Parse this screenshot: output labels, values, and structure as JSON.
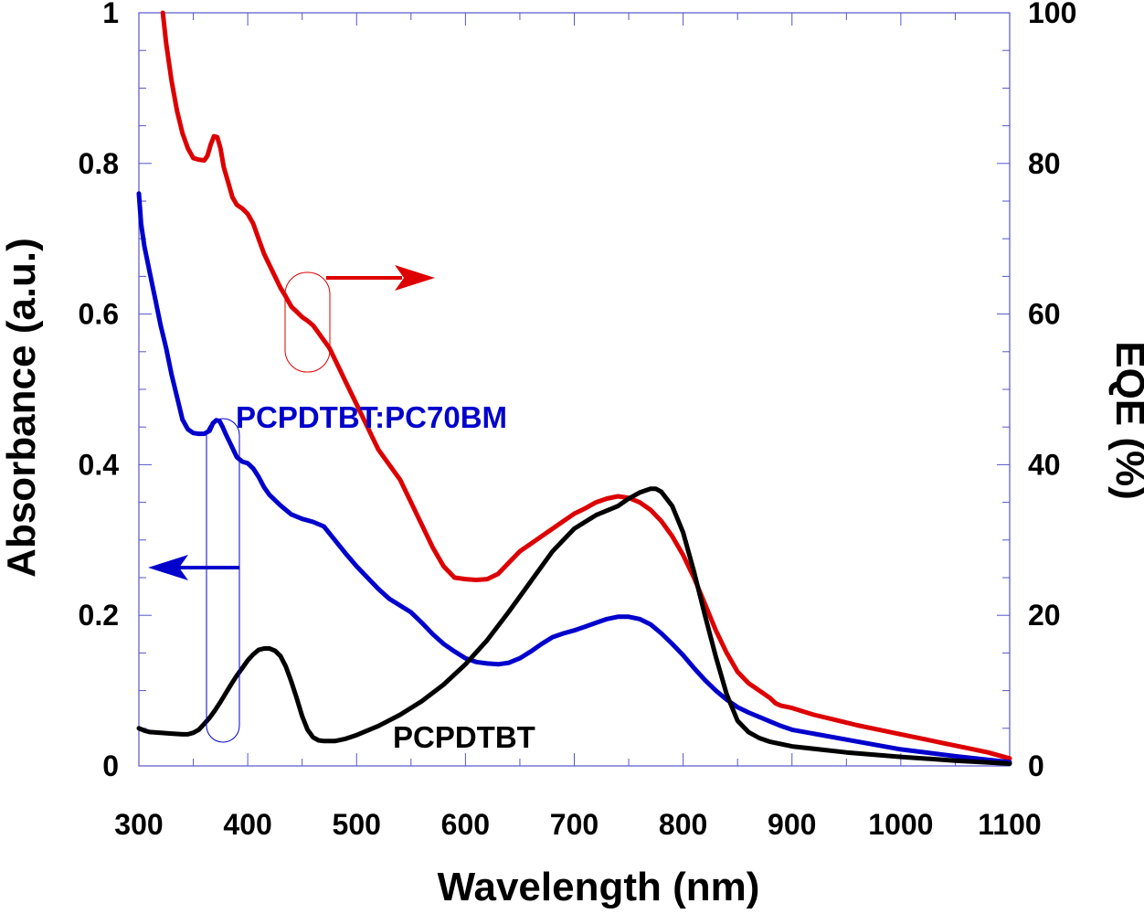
{
  "chart_data": {
    "type": "line",
    "xlabel": "Wavelength (nm)",
    "ylabel_left": "Absorbance (a.u.)",
    "ylabel_right": "EQE (%)",
    "xlim": [
      300,
      1100
    ],
    "ylim_left": [
      0,
      1
    ],
    "ylim_right": [
      0,
      100
    ],
    "x_ticks": [
      300,
      400,
      500,
      600,
      700,
      800,
      900,
      1000,
      1100
    ],
    "x_tick_labels": [
      "300",
      "400",
      "500",
      "600",
      "700",
      "800",
      "900",
      "1000",
      "1100"
    ],
    "y_left_ticks": [
      0,
      0.2,
      0.4,
      0.6,
      0.8,
      1
    ],
    "y_left_tick_labels": [
      "0",
      "0.2",
      "0.4",
      "0.6",
      "0.8",
      "1"
    ],
    "y_right_ticks": [
      0,
      20,
      40,
      60,
      80,
      100
    ],
    "y_right_tick_labels": [
      "0",
      "20",
      "40",
      "60",
      "80",
      "100"
    ],
    "series": [
      {
        "name": "EQE",
        "axis": "right",
        "color": "#dd0000",
        "x": [
          322,
          325,
          330,
          335,
          340,
          345,
          350,
          355,
          360,
          363,
          366,
          369,
          372,
          375,
          378,
          382,
          386,
          390,
          395,
          400,
          405,
          410,
          415,
          420,
          425,
          430,
          435,
          440,
          445,
          450,
          455,
          460,
          465,
          470,
          475,
          480,
          485,
          490,
          495,
          500,
          505,
          510,
          515,
          520,
          530,
          540,
          550,
          560,
          570,
          580,
          590,
          600,
          610,
          620,
          630,
          640,
          650,
          660,
          670,
          680,
          690,
          700,
          710,
          720,
          730,
          740,
          750,
          760,
          770,
          780,
          790,
          800,
          810,
          820,
          830,
          840,
          850,
          860,
          870,
          880,
          885,
          890,
          900,
          920,
          940,
          960,
          980,
          1000,
          1020,
          1040,
          1060,
          1080,
          1100
        ],
        "values": [
          100,
          96,
          91,
          87,
          84,
          82,
          80.7,
          80.5,
          80.4,
          81,
          82.5,
          83.6,
          83.5,
          82,
          79.5,
          77.5,
          75.5,
          74.5,
          74,
          73.3,
          72,
          70,
          68,
          66.5,
          65,
          63.5,
          62.3,
          61,
          60.3,
          59.6,
          59.1,
          58.5,
          57.5,
          56.5,
          55.5,
          54,
          52.5,
          51,
          49.5,
          48,
          46.5,
          45,
          43.5,
          42,
          40,
          38,
          35,
          32,
          29,
          26.5,
          25,
          24.8,
          24.7,
          24.8,
          25.5,
          27,
          28.5,
          29.5,
          30.5,
          31.5,
          32.5,
          33.5,
          34.2,
          35,
          35.5,
          35.8,
          35.6,
          35,
          34,
          32.5,
          30.5,
          28,
          25,
          21.5,
          18,
          15,
          12.5,
          11,
          10,
          9,
          8.3,
          8,
          7.7,
          6.8,
          6.1,
          5.4,
          4.8,
          4.2,
          3.6,
          3,
          2.4,
          1.8,
          1
        ]
      },
      {
        "name": "PCPDTBT:PC70BM",
        "axis": "left",
        "color": "#0000cc",
        "x": [
          300,
          302,
          305,
          310,
          315,
          320,
          325,
          330,
          335,
          340,
          345,
          350,
          355,
          360,
          365,
          368,
          371,
          374,
          377,
          380,
          385,
          390,
          395,
          400,
          405,
          410,
          415,
          420,
          430,
          440,
          450,
          460,
          470,
          480,
          490,
          500,
          510,
          520,
          530,
          540,
          550,
          560,
          570,
          580,
          590,
          600,
          610,
          620,
          630,
          640,
          650,
          660,
          670,
          680,
          690,
          700,
          710,
          720,
          730,
          740,
          750,
          760,
          770,
          780,
          790,
          800,
          810,
          820,
          830,
          840,
          850,
          860,
          870,
          880,
          890,
          900,
          950,
          1000,
          1050,
          1100
        ],
        "values": [
          0.76,
          0.72,
          0.69,
          0.655,
          0.62,
          0.585,
          0.555,
          0.52,
          0.49,
          0.46,
          0.447,
          0.442,
          0.441,
          0.441,
          0.445,
          0.455,
          0.459,
          0.458,
          0.45,
          0.44,
          0.425,
          0.41,
          0.404,
          0.402,
          0.395,
          0.384,
          0.37,
          0.36,
          0.346,
          0.334,
          0.328,
          0.324,
          0.318,
          0.3,
          0.282,
          0.265,
          0.25,
          0.235,
          0.222,
          0.213,
          0.204,
          0.19,
          0.175,
          0.162,
          0.152,
          0.143,
          0.138,
          0.136,
          0.135,
          0.137,
          0.143,
          0.152,
          0.162,
          0.171,
          0.176,
          0.18,
          0.185,
          0.19,
          0.195,
          0.198,
          0.198,
          0.195,
          0.188,
          0.176,
          0.162,
          0.147,
          0.13,
          0.114,
          0.1,
          0.088,
          0.078,
          0.071,
          0.065,
          0.059,
          0.053,
          0.048,
          0.035,
          0.022,
          0.013,
          0.005
        ]
      },
      {
        "name": "PCPDTBT",
        "axis": "left",
        "color": "#000000",
        "x": [
          300,
          305,
          310,
          320,
          330,
          340,
          345,
          350,
          355,
          360,
          365,
          370,
          375,
          380,
          385,
          390,
          395,
          400,
          405,
          410,
          415,
          420,
          425,
          430,
          435,
          440,
          445,
          450,
          455,
          460,
          465,
          470,
          475,
          480,
          490,
          500,
          520,
          540,
          560,
          580,
          600,
          620,
          640,
          660,
          680,
          700,
          720,
          740,
          750,
          760,
          770,
          775,
          780,
          790,
          800,
          810,
          820,
          830,
          840,
          850,
          860,
          870,
          880,
          890,
          900,
          950,
          1000,
          1050,
          1100
        ],
        "values": [
          0.05,
          0.047,
          0.045,
          0.044,
          0.043,
          0.042,
          0.042,
          0.044,
          0.048,
          0.056,
          0.064,
          0.074,
          0.085,
          0.097,
          0.109,
          0.12,
          0.13,
          0.14,
          0.148,
          0.154,
          0.156,
          0.156,
          0.153,
          0.146,
          0.132,
          0.112,
          0.09,
          0.066,
          0.048,
          0.038,
          0.034,
          0.033,
          0.033,
          0.033,
          0.036,
          0.041,
          0.053,
          0.068,
          0.086,
          0.108,
          0.135,
          0.167,
          0.205,
          0.245,
          0.285,
          0.315,
          0.333,
          0.345,
          0.355,
          0.363,
          0.368,
          0.368,
          0.364,
          0.345,
          0.31,
          0.258,
          0.2,
          0.145,
          0.095,
          0.06,
          0.045,
          0.037,
          0.032,
          0.029,
          0.026,
          0.018,
          0.012,
          0.007,
          0.003
        ]
      }
    ],
    "annotations": [
      {
        "text": "PCPDTBT:PC70BM",
        "color": "#0000cc"
      },
      {
        "text": "PCPDTBT",
        "color": "#000000"
      }
    ],
    "arrows": [
      {
        "series": "EQE",
        "points_to": "right",
        "axis": "right",
        "color": "#dd0000"
      },
      {
        "series": "PCPDTBT:PC70BM",
        "points_to": "left",
        "axis": "left",
        "color": "#0000cc"
      }
    ]
  }
}
